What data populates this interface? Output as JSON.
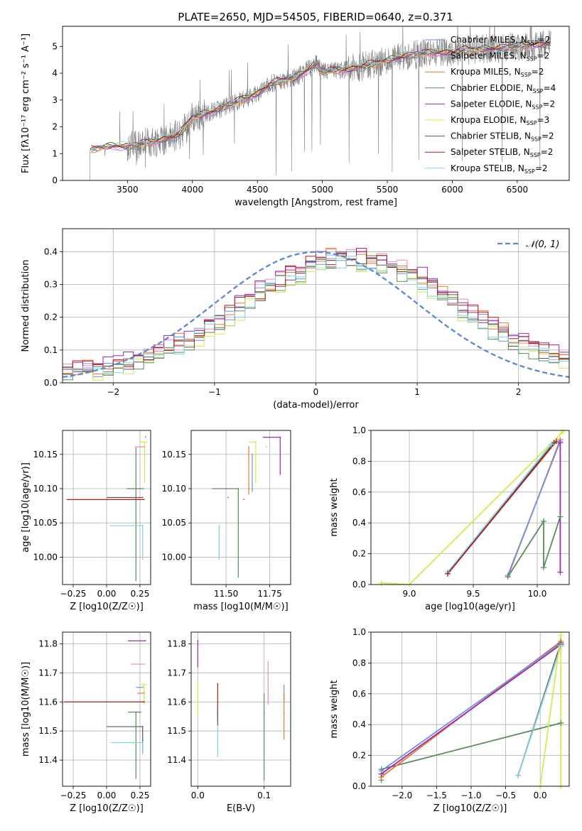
{
  "figure": {
    "title": "PLATE=2650, MJD=54505, FIBERID=0640, z=0.371"
  },
  "colors": {
    "Chabrier MILES": "#6f8fe0",
    "Salpeter MILES": "#ef87c0",
    "Kroupa MILES": "#e67b2e",
    "Chabrier ELODIE": "#5b8a5b",
    "Salpeter ELODIE": "#9d27b0",
    "Kroupa ELODIE": "#d4ea4a",
    "Chabrier STELIB": "#585858",
    "Salpeter STELIB": "#b01a1a",
    "Kroupa STELIB": "#7fd3dc",
    "data": "#7f7f7f",
    "gaussian": "#5b87d6",
    "grid": "#b0b0b0"
  },
  "chart_data": [
    {
      "type": "line",
      "panel": "spectrum",
      "xlabel": "wavelength [Angstrom, rest frame]",
      "ylabel": "Flux [fλ10⁻¹⁷ erg cm⁻² s⁻¹ A⁻¹]",
      "xlim": [
        3000,
        6900
      ],
      "ylim": [
        0,
        5.75
      ],
      "xticks": [
        3500,
        4000,
        4500,
        5000,
        5500,
        6000,
        6500
      ],
      "yticks": [
        0,
        1,
        2,
        3,
        4,
        5
      ],
      "grid": false,
      "legend_position": "top-right",
      "continuum": [
        [
          3200,
          1.15
        ],
        [
          3400,
          1.3
        ],
        [
          3500,
          1.25
        ],
        [
          3700,
          1.45
        ],
        [
          3900,
          1.7
        ],
        [
          4000,
          2.35
        ],
        [
          4200,
          2.65
        ],
        [
          4400,
          3.05
        ],
        [
          4500,
          3.25
        ],
        [
          4600,
          3.6
        ],
        [
          4800,
          3.85
        ],
        [
          4950,
          4.35
        ],
        [
          5000,
          4.05
        ],
        [
          5200,
          4.15
        ],
        [
          5400,
          4.35
        ],
        [
          5600,
          4.6
        ],
        [
          5800,
          4.75
        ],
        [
          6000,
          4.8
        ],
        [
          6200,
          4.9
        ],
        [
          6400,
          4.95
        ],
        [
          6600,
          5.05
        ],
        [
          6750,
          5.1
        ]
      ],
      "series": [
        {
          "name": "Chabrier MILES",
          "nssp": "2"
        },
        {
          "name": "Salpeter MILES",
          "nssp": "2"
        },
        {
          "name": "Kroupa MILES",
          "nssp": "2"
        },
        {
          "name": "Chabrier ELODIE",
          "nssp": "4"
        },
        {
          "name": "Salpeter ELODIE",
          "nssp": "2"
        },
        {
          "name": "Kroupa ELODIE",
          "nssp": "3"
        },
        {
          "name": "Chabrier STELIB",
          "nssp": "2"
        },
        {
          "name": "Salpeter STELIB",
          "nssp": "2"
        },
        {
          "name": "Kroupa STELIB",
          "nssp": "2"
        }
      ]
    },
    {
      "type": "line",
      "panel": "residuals",
      "xlabel": "(data-model)/error",
      "ylabel": "Normed distribution",
      "xlim": [
        -2.5,
        2.5
      ],
      "ylim": [
        0,
        0.47
      ],
      "xticks": [
        -2,
        -1,
        0,
        1,
        2
      ],
      "yticks": [
        0.0,
        0.1,
        0.2,
        0.3,
        0.4
      ],
      "grid": true,
      "gaussian_label": "𝒩(0, 1)",
      "bin_width": 0.1,
      "shape_scale": 0.36,
      "series_offsets": [
        0.0,
        0.015,
        0.01,
        -0.01,
        0.02,
        -0.015,
        0.0,
        0.01,
        -0.005
      ]
    },
    {
      "type": "scatter",
      "panel": "age-vs-Z",
      "xlabel": "Z [log10(Z/Z☉)]",
      "ylabel": "age  [log10(age/yr)]",
      "xlim": [
        -0.33,
        0.33
      ],
      "ylim": [
        9.96,
        10.185
      ],
      "xticks": [
        -0.25,
        0.0,
        0.25
      ],
      "yticks": [
        10.0,
        10.05,
        10.1,
        10.15
      ],
      "grid": true,
      "points": [
        {
          "series": "Salpeter ELODIE",
          "x": 0.29,
          "y": 10.175,
          "xerr": [
            0.0,
            0.0
          ],
          "yerr": [
            0.0,
            0.0
          ]
        },
        {
          "series": "Kroupa ELODIE",
          "x": 0.285,
          "y": 10.168,
          "xerr": [
            0.04,
            0.02
          ],
          "yerr": [
            0.06,
            0.0
          ]
        },
        {
          "series": "Salpeter MILES",
          "x": 0.27,
          "y": 10.161,
          "xerr": [
            0.06,
            0.02
          ],
          "yerr": [
            0.0,
            0.0
          ]
        },
        {
          "series": "Chabrier ELODIE",
          "x": 0.22,
          "y": 10.1,
          "xerr": [
            0.07,
            0.06
          ],
          "yerr": [
            0.135,
            0.06
          ]
        },
        {
          "series": "Chabrier STELIB",
          "x": 0.27,
          "y": 10.087,
          "xerr": [
            0.27,
            0.0
          ],
          "yerr": [
            0.0,
            0.0
          ]
        },
        {
          "series": "Salpeter STELIB",
          "x": 0.28,
          "y": 10.084,
          "xerr": [
            0.58,
            0.0
          ],
          "yerr": [
            0.0,
            0.0
          ]
        },
        {
          "series": "Kroupa STELIB",
          "x": 0.27,
          "y": 10.046,
          "xerr": [
            0.25,
            0.0
          ],
          "yerr": [
            0.05,
            0.0
          ]
        }
      ]
    },
    {
      "type": "scatter",
      "panel": "age-vs-mass",
      "xlabel": "mass [log10(M/M☉)]",
      "ylabel": "",
      "xlim": [
        11.3,
        11.87
      ],
      "ylim": [
        9.96,
        10.185
      ],
      "xticks": [
        11.5,
        11.75
      ],
      "yticks": [
        10.0,
        10.05,
        10.1,
        10.15
      ],
      "grid": true,
      "points": [
        {
          "series": "Salpeter ELODIE",
          "x": 11.81,
          "y": 10.175,
          "xerr": [
            0.1,
            0.0
          ],
          "yerr": [
            0.055,
            0.0
          ]
        },
        {
          "series": "Kroupa ELODIE",
          "x": 11.67,
          "y": 10.168,
          "xerr": [
            0.04,
            0.0
          ],
          "yerr": [
            0.06,
            0.0
          ]
        },
        {
          "series": "Salpeter MILES",
          "x": 11.73,
          "y": 10.161,
          "xerr": [
            0.0,
            0.0
          ],
          "yerr": [
            0.0,
            0.0
          ]
        },
        {
          "series": "Chabrier MILES",
          "x": 11.65,
          "y": 10.15,
          "xerr": [
            0.0,
            0.0
          ],
          "yerr": [
            0.055,
            0.0
          ]
        },
        {
          "series": "Kroupa MILES",
          "x": 11.63,
          "y": 10.161,
          "xerr": [
            0.0,
            0.0
          ],
          "yerr": [
            0.07,
            0.0
          ]
        },
        {
          "series": "Chabrier ELODIE",
          "x": 11.57,
          "y": 10.1,
          "xerr": [
            0.15,
            0.0
          ],
          "yerr": [
            0.13,
            0.0
          ]
        },
        {
          "series": "Chabrier STELIB",
          "x": 11.51,
          "y": 10.087,
          "xerr": [
            0.0,
            0.0
          ],
          "yerr": [
            0.0,
            0.0
          ]
        },
        {
          "series": "Salpeter STELIB",
          "x": 11.6,
          "y": 10.084,
          "xerr": [
            0.0,
            0.0
          ],
          "yerr": [
            0.0,
            0.0
          ]
        },
        {
          "series": "Kroupa STELIB",
          "x": 11.46,
          "y": 10.046,
          "xerr": [
            0.0,
            0.0
          ],
          "yerr": [
            0.05,
            0.0
          ]
        }
      ]
    },
    {
      "type": "line",
      "panel": "massweight-vs-age",
      "xlabel": "age  [log10(age/yr)]",
      "ylabel": "mass weight",
      "xlim": [
        8.7,
        10.25
      ],
      "ylim": [
        0,
        1.0
      ],
      "xticks": [
        9.0,
        9.5,
        10.0
      ],
      "yticks": [
        0.0,
        0.2,
        0.4,
        0.6,
        0.8,
        1.0
      ],
      "grid": true,
      "series": [
        {
          "name": "Kroupa ELODIE",
          "points": [
            [
              8.78,
              0.01
            ],
            [
              9.0,
              0.0
            ],
            [
              10.2,
              0.99
            ]
          ]
        },
        {
          "name": "Chabrier STELIB",
          "points": [
            [
              9.3,
              0.07
            ],
            [
              10.13,
              0.92
            ]
          ]
        },
        {
          "name": "Kroupa STELIB",
          "points": [
            [
              9.3,
              0.08
            ],
            [
              10.11,
              0.91
            ]
          ]
        },
        {
          "name": "Salpeter STELIB",
          "points": [
            [
              9.3,
              0.07
            ],
            [
              10.15,
              0.93
            ]
          ]
        },
        {
          "name": "Kroupa MILES",
          "points": [
            [
              9.77,
              0.05
            ],
            [
              10.18,
              0.94
            ]
          ]
        },
        {
          "name": "Chabrier MILES",
          "points": [
            [
              9.77,
              0.06
            ],
            [
              10.18,
              0.93
            ]
          ]
        },
        {
          "name": "Chabrier ELODIE",
          "points": [
            [
              9.77,
              0.05
            ],
            [
              10.05,
              0.41
            ],
            [
              10.05,
              0.11
            ],
            [
              10.18,
              0.44
            ]
          ]
        },
        {
          "name": "Salpeter ELODIE",
          "points": [
            [
              10.18,
              0.08
            ],
            [
              10.18,
              0.92
            ]
          ]
        }
      ]
    },
    {
      "type": "scatter",
      "panel": "mass-vs-Z",
      "xlabel": "Z [log10(Z/Z☉)]",
      "ylabel": "mass [log10(M/M☉)]",
      "xlim": [
        -0.33,
        0.33
      ],
      "ylim": [
        11.31,
        11.84
      ],
      "xticks": [
        -0.25,
        0.0,
        0.25
      ],
      "yticks": [
        11.4,
        11.5,
        11.6,
        11.7,
        11.8
      ],
      "grid": true,
      "points": [
        {
          "series": "Salpeter ELODIE",
          "x": 0.29,
          "y": 11.81,
          "xerr": [
            0.13,
            0.0
          ],
          "yerr": [
            0.0,
            0.0
          ]
        },
        {
          "series": "Salpeter MILES",
          "x": 0.28,
          "y": 11.73,
          "xerr": [
            0.1,
            0.0
          ],
          "yerr": [
            0.0,
            0.0
          ]
        },
        {
          "series": "Kroupa ELODIE",
          "x": 0.28,
          "y": 11.66,
          "xerr": [
            0.03,
            0.02
          ],
          "yerr": [
            0.07,
            0.0
          ]
        },
        {
          "series": "Chabrier MILES",
          "x": 0.27,
          "y": 11.65,
          "xerr": [
            0.05,
            0.0
          ],
          "yerr": [
            0.0,
            0.0
          ]
        },
        {
          "series": "Kroupa MILES",
          "x": 0.28,
          "y": 11.63,
          "xerr": [
            0.05,
            0.0
          ],
          "yerr": [
            0.0,
            0.0
          ]
        },
        {
          "series": "Salpeter STELIB",
          "x": 0.28,
          "y": 11.6,
          "xerr": [
            0.6,
            0.0
          ],
          "yerr": [
            0.0,
            0.0
          ]
        },
        {
          "series": "Chabrier ELODIE",
          "x": 0.22,
          "y": 11.565,
          "xerr": [
            0.06,
            0.04
          ],
          "yerr": [
            0.23,
            0.0
          ]
        },
        {
          "series": "Chabrier STELIB",
          "x": 0.27,
          "y": 11.515,
          "xerr": [
            0.27,
            0.0
          ],
          "yerr": [
            0.09,
            0.0
          ]
        },
        {
          "series": "Kroupa STELIB",
          "x": 0.27,
          "y": 11.46,
          "xerr": [
            0.24,
            0.0
          ],
          "yerr": [
            0.04,
            0.0
          ]
        }
      ]
    },
    {
      "type": "scatter",
      "panel": "mass-vs-EBV",
      "xlabel": "E(B-V)",
      "ylabel": "",
      "xlim": [
        -0.01,
        0.14
      ],
      "ylim": [
        11.31,
        11.84
      ],
      "xticks": [
        0.0,
        0.1
      ],
      "yticks": [
        11.4,
        11.5,
        11.6,
        11.7,
        11.8
      ],
      "grid": true,
      "points": [
        {
          "series": "Salpeter ELODIE",
          "x": 0.0,
          "y": 11.81,
          "xerr": [
            0.0,
            0.0
          ],
          "yerr": [
            0.09,
            0.0
          ]
        },
        {
          "series": "Kroupa ELODIE",
          "x": 0.0,
          "y": 11.6,
          "xerr": [
            0.0,
            0.0
          ],
          "yerr": [
            0.05,
            0.07
          ]
        },
        {
          "series": "Salpeter STELIB",
          "x": 0.03,
          "y": 11.6,
          "xerr": [
            0.0,
            0.0
          ],
          "yerr": [
            0.06,
            0.065
          ]
        },
        {
          "series": "Chabrier STELIB",
          "x": 0.03,
          "y": 11.52,
          "xerr": [
            0.0,
            0.0
          ],
          "yerr": [
            0.0,
            0.06
          ]
        },
        {
          "series": "Kroupa STELIB",
          "x": 0.03,
          "y": 11.46,
          "xerr": [
            0.0,
            0.0
          ],
          "yerr": [
            0.05,
            0.06
          ]
        },
        {
          "series": "Chabrier ELODIE",
          "x": 0.1,
          "y": 11.56,
          "xerr": [
            0.0,
            0.0
          ],
          "yerr": [
            0.23,
            0.07
          ]
        },
        {
          "series": "Salpeter MILES",
          "x": 0.106,
          "y": 11.64,
          "xerr": [
            0.0,
            0.0
          ],
          "yerr": [
            0.05,
            0.1
          ]
        },
        {
          "series": "Chabrier MILES",
          "x": 0.13,
          "y": 11.6,
          "xerr": [
            0.0,
            0.0
          ],
          "yerr": [
            0.0,
            0.06
          ]
        },
        {
          "series": "Kroupa MILES",
          "x": 0.13,
          "y": 11.56,
          "xerr": [
            0.0,
            0.0
          ],
          "yerr": [
            0.09,
            0.07
          ]
        }
      ]
    },
    {
      "type": "line",
      "panel": "massweight-vs-Z",
      "xlabel": "Z [log10(Z/Z☉)]",
      "ylabel": "mass weight",
      "xlim": [
        -2.45,
        0.42
      ],
      "ylim": [
        0,
        1.0
      ],
      "xticks": [
        -2.0,
        -1.5,
        -1.0,
        -0.5,
        0.0
      ],
      "yticks": [
        0.0,
        0.2,
        0.4,
        0.6,
        0.8,
        1.0
      ],
      "grid": true,
      "series": [
        {
          "name": "Chabrier ELODIE",
          "points": [
            [
              -2.3,
              0.04
            ],
            [
              -2.3,
              0.11
            ],
            [
              0.3,
              0.41
            ]
          ]
        },
        {
          "name": "Kroupa MILES",
          "points": [
            [
              -2.3,
              0.06
            ],
            [
              0.3,
              0.94
            ]
          ]
        },
        {
          "name": "Salpeter ELODIE",
          "points": [
            [
              -2.3,
              0.08
            ],
            [
              0.3,
              0.92
            ]
          ]
        },
        {
          "name": "Chabrier MILES",
          "points": [
            [
              -2.3,
              0.1
            ],
            [
              0.3,
              0.93
            ]
          ]
        },
        {
          "name": "Chabrier STELIB",
          "points": [
            [
              -0.32,
              0.07
            ],
            [
              0.3,
              0.93
            ]
          ]
        },
        {
          "name": "Kroupa STELIB",
          "points": [
            [
              -0.32,
              0.07
            ],
            [
              0.3,
              0.91
            ]
          ]
        },
        {
          "name": "Kroupa ELODIE",
          "points": [
            [
              0.0,
              0.0
            ],
            [
              0.3,
              0.98
            ],
            [
              0.3,
              0.0
            ]
          ]
        }
      ]
    }
  ]
}
